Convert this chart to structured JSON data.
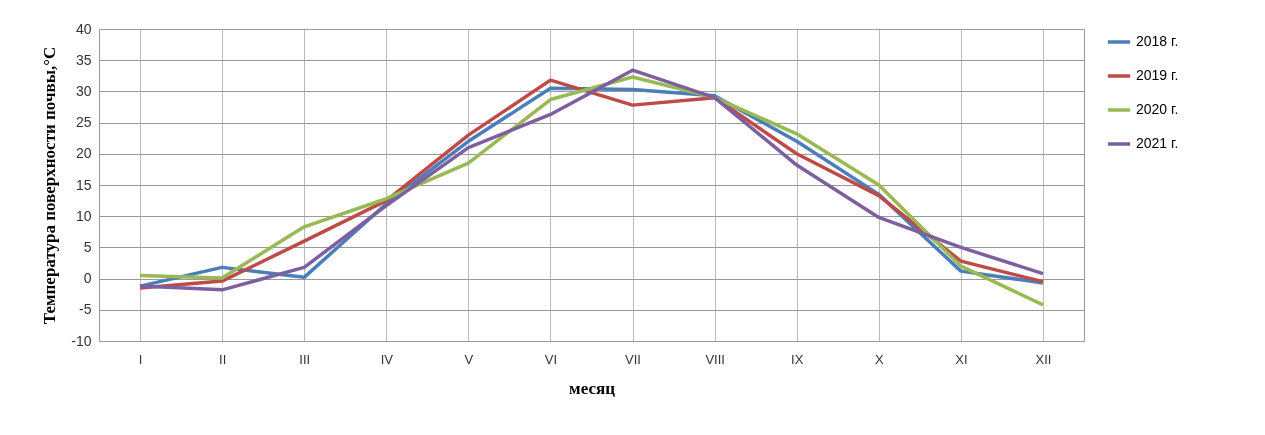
{
  "chart_data": {
    "type": "line",
    "xlabel": "месяц",
    "ylabel": "Температура поверхности почвы,°С",
    "categories": [
      "I",
      "II",
      "III",
      "IV",
      "V",
      "VI",
      "VII",
      "VIII",
      "IX",
      "X",
      "XI",
      "XII"
    ],
    "series": [
      {
        "name": "2018 г.",
        "color": "#4a7ebb",
        "values": [
          -1.2,
          1.8,
          0.2,
          12,
          22,
          30.5,
          30.3,
          29.3,
          22,
          13.5,
          1.2,
          -0.7
        ]
      },
      {
        "name": "2019 г.",
        "color": "#be4b48",
        "values": [
          -1.5,
          -0.4,
          6,
          12.5,
          23,
          31.8,
          27.8,
          29,
          20,
          13.3,
          2.8,
          -0.5
        ]
      },
      {
        "name": "2020 г.",
        "color": "#98b954",
        "values": [
          0.5,
          0.1,
          8.3,
          12.8,
          18.5,
          28.7,
          32.3,
          29,
          23.2,
          15,
          2,
          -4.2
        ]
      },
      {
        "name": "2021 г.",
        "color": "#7d5fa0",
        "values": [
          -1.2,
          -1.8,
          1.8,
          11.7,
          21,
          26.3,
          33.4,
          29,
          18.2,
          9.8,
          5,
          0.8
        ]
      }
    ],
    "ylim": [
      -10,
      40
    ],
    "yticks": [
      -10,
      -5,
      0,
      5,
      10,
      15,
      20,
      25,
      30,
      35,
      40
    ],
    "grid": true,
    "legend": "right",
    "marker": "none",
    "line_style": "solid"
  }
}
